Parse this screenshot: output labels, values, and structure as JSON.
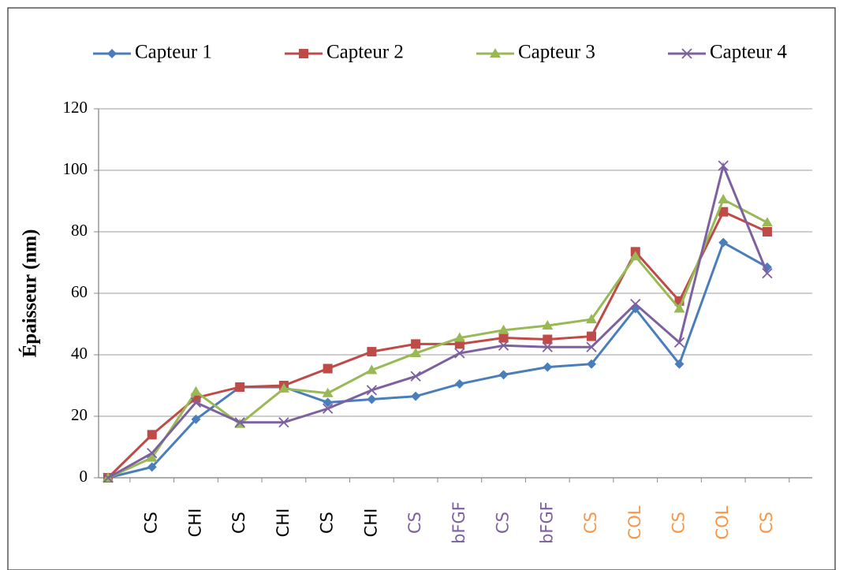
{
  "chart_data": {
    "type": "line",
    "ylabel": "Épaisseur (nm)",
    "categories": [
      null,
      "CS",
      "CHI",
      "CS",
      "CHI",
      "CS",
      "CHI",
      "CS",
      "bFGF",
      "CS",
      "bFGF",
      "CS",
      "COL",
      "CS",
      "COL",
      "CS"
    ],
    "category_colors": [
      "#000000",
      "#000000",
      "#000000",
      "#000000",
      "#000000",
      "#000000",
      "#000000",
      "#7d60a0",
      "#7d60a0",
      "#7d60a0",
      "#7d60a0",
      "#f79646",
      "#f79646",
      "#f79646",
      "#f79646",
      "#f79646"
    ],
    "series": [
      {
        "name": "Capteur 1",
        "color": "#4a7ebb",
        "marker": "diamond",
        "values": [
          0,
          3.5,
          19,
          29.5,
          29.5,
          24.5,
          25.5,
          26.5,
          30.5,
          33.5,
          36,
          37,
          55,
          37,
          76.5,
          68.5
        ]
      },
      {
        "name": "Capteur 2",
        "color": "#be4b48",
        "marker": "square",
        "values": [
          0,
          14,
          26,
          29.5,
          30,
          35.5,
          41,
          43.5,
          43.5,
          45.5,
          45,
          46,
          73.5,
          57.5,
          86.5,
          80
        ]
      },
      {
        "name": "Capteur 3",
        "color": "#98b954",
        "marker": "triangle",
        "values": [
          0,
          6.5,
          28,
          17.5,
          29,
          27.5,
          35,
          40.5,
          45.5,
          48,
          49.5,
          51.5,
          72,
          55,
          90.5,
          83
        ]
      },
      {
        "name": "Capteur 4",
        "color": "#7d60a0",
        "marker": "x",
        "values": [
          0,
          8,
          24.5,
          18,
          18,
          22.5,
          28.5,
          33,
          40.5,
          43,
          42.5,
          42.5,
          56.5,
          44,
          101.5,
          66.5
        ]
      }
    ],
    "ylim": [
      0,
      120
    ],
    "yticks": [
      0,
      20,
      40,
      60,
      80,
      100,
      120
    ],
    "grid": true,
    "legend": "top"
  }
}
